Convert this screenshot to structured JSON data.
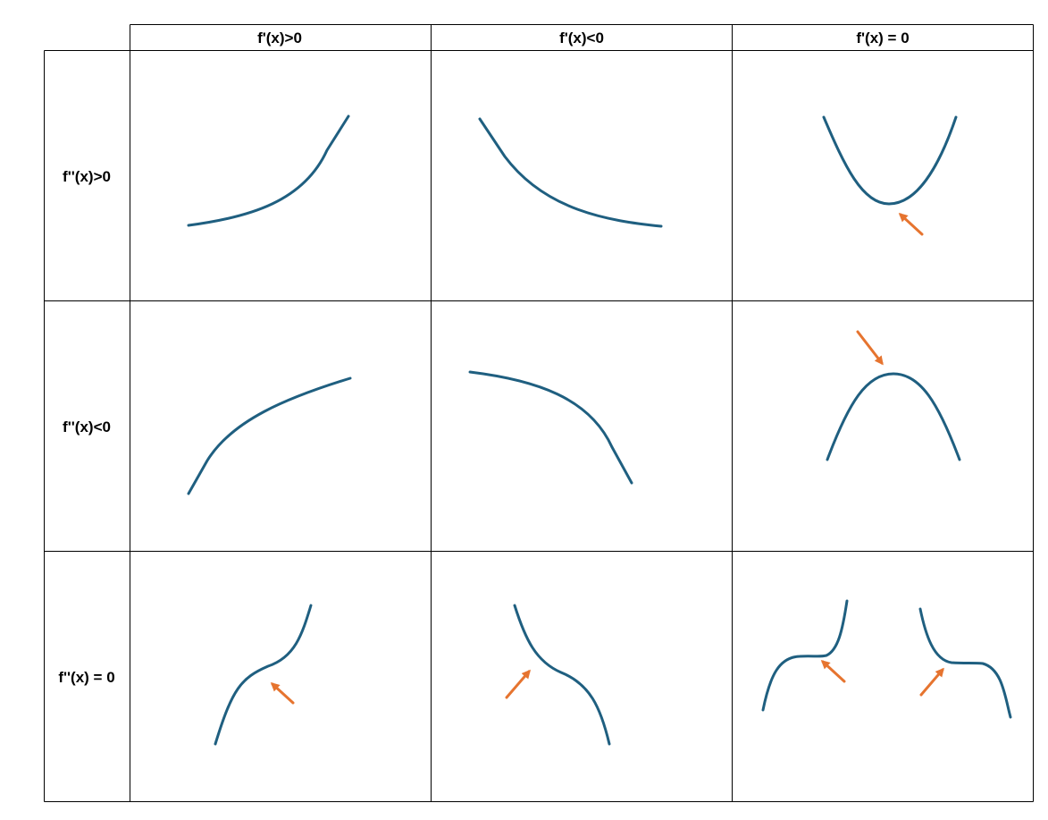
{
  "columns": [
    {
      "label": "f'(x)>0"
    },
    {
      "label": "f'(x)<0"
    },
    {
      "label": "f'(x) = 0"
    }
  ],
  "rows": [
    {
      "label": "f''(x)>0"
    },
    {
      "label": "f''(x)<0"
    },
    {
      "label": "f''(x) = 0"
    }
  ],
  "colors": {
    "curve": "#1f5f80",
    "arrow": "#e6742f",
    "grid": "#000000"
  }
}
